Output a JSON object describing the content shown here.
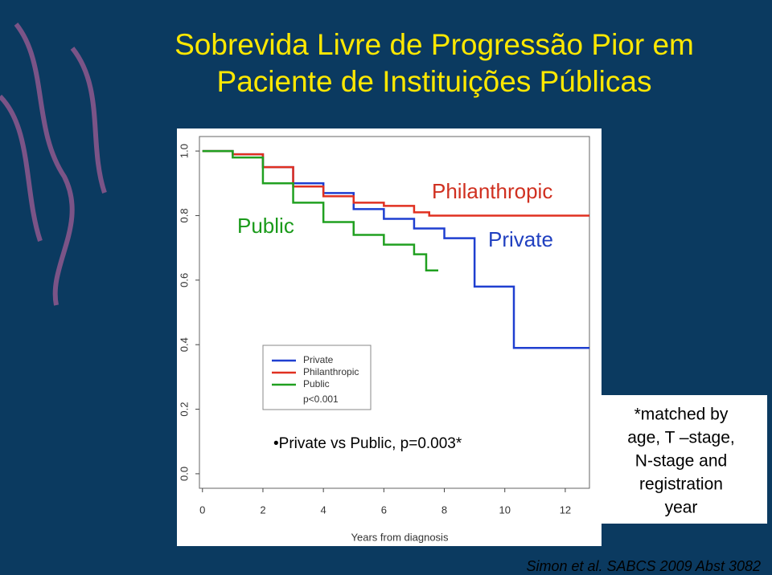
{
  "chart_data": {
    "type": "step",
    "title": [
      "Sobrevida Livre de Progressão Pior em",
      "Paciente de Instituições Públicas"
    ],
    "x_label": "Years from diagnosis",
    "xlim": [
      -0.1,
      12.8
    ],
    "ylim": [
      -0.045,
      1.045
    ],
    "xticks": [
      0,
      2,
      4,
      6,
      8,
      10,
      12
    ],
    "yticks": [
      {
        "value": 0,
        "label": "0.0"
      },
      {
        "value": 0.2,
        "label": "0.2"
      },
      {
        "value": 0.4,
        "label": "0.4"
      },
      {
        "value": 0.6,
        "label": "0.6"
      },
      {
        "value": 0.8,
        "label": "0.8"
      },
      {
        "value": 1,
        "label": "1.0"
      }
    ],
    "series": [
      {
        "name": "Private",
        "color": "#1f3fd0",
        "x": [
          0,
          1,
          2,
          3,
          4,
          5,
          6,
          7,
          8,
          9,
          10.3,
          12.8
        ],
        "values": [
          1,
          0.99,
          0.95,
          0.9,
          0.87,
          0.82,
          0.79,
          0.76,
          0.73,
          0.58,
          0.39,
          0.39
        ]
      },
      {
        "name": "Philanthropic",
        "color": "#e03020",
        "x": [
          0,
          1,
          2,
          3,
          4,
          5,
          6,
          7,
          7.5,
          12.8
        ],
        "values": [
          1,
          0.99,
          0.95,
          0.89,
          0.86,
          0.84,
          0.83,
          0.81,
          0.8,
          0.8
        ]
      },
      {
        "name": "Public",
        "color": "#20a020",
        "x": [
          0,
          1,
          2,
          3,
          4,
          5,
          6,
          7,
          7.4,
          7.8
        ],
        "values": [
          1,
          0.98,
          0.9,
          0.84,
          0.78,
          0.74,
          0.71,
          0.68,
          0.63,
          0.63
        ]
      }
    ],
    "legend_note": "p<0.001",
    "annotations": [
      {
        "text": "Public",
        "color": "#1a9a1a"
      },
      {
        "text": "Philanthropic",
        "color": "#d03020"
      },
      {
        "text": "Private",
        "color": "#2040c0"
      }
    ],
    "bullet": "•Private vs Public, p=0.003*",
    "note": [
      "*matched by",
      "age, T –stage,",
      "N-stage and",
      "registration",
      "year"
    ],
    "source": "Simon et al. SABCS 2009 Abst 3082"
  }
}
